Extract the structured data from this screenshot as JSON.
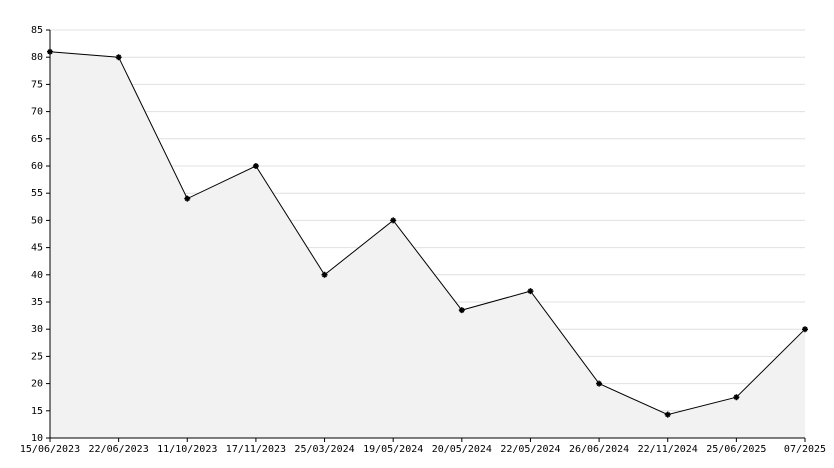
{
  "chart_data": {
    "type": "area",
    "categories": [
      "15/06/2023",
      "22/06/2023",
      "11/10/2023",
      "17/11/2023",
      "25/03/2024",
      "19/05/2024",
      "20/05/2024",
      "22/05/2024",
      "26/06/2024",
      "22/11/2024",
      "25/06/2025",
      "07/2025"
    ],
    "values": [
      81,
      80,
      54,
      60,
      40,
      50,
      33.5,
      37,
      20,
      14.3,
      17.5,
      30
    ],
    "color": "#000000",
    "fill_color": "#f2f2f2",
    "ylim": [
      10,
      85
    ],
    "yticks": [
      10,
      15,
      20,
      25,
      30,
      35,
      40,
      45,
      50,
      55,
      60,
      65,
      70,
      75,
      80,
      85
    ],
    "grid": true
  }
}
